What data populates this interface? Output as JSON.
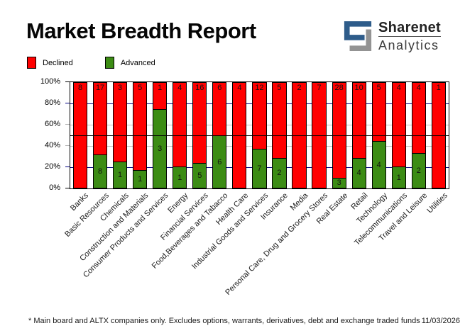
{
  "header": {
    "title": "Market Breadth Report"
  },
  "logo": {
    "brand": "Sharenet",
    "sub": "Analytics",
    "blue": "#2e5c8a",
    "gray": "#939393"
  },
  "legend": {
    "items": [
      {
        "label": "Declined",
        "color": "#ff0000"
      },
      {
        "label": "Advanced",
        "color": "#3c8c14"
      }
    ]
  },
  "chart_data": {
    "type": "bar",
    "stacked": true,
    "normalized": "percent",
    "title": "Market Breadth Report",
    "legend_position": "top-left",
    "categories": [
      "Banks",
      "Basic Resources",
      "Chemicals",
      "Construction and Materials",
      "Consumer Products and Services",
      "Energy",
      "Financial Services",
      "Food,Beverages and Tabacco",
      "Health Care",
      "Industrial Goods and Services",
      "Insurance",
      "Media",
      "Personal Care, Drug and Grocery Stores",
      "Real Estate",
      "Retail",
      "Technology",
      "Telecommunications",
      "Travel and Leisure",
      "Utilities"
    ],
    "series": [
      {
        "name": "Declined",
        "color": "#ff0000",
        "values": [
          8,
          17,
          3,
          5,
          1,
          4,
          16,
          6,
          4,
          12,
          5,
          2,
          7,
          28,
          10,
          5,
          4,
          4,
          1
        ]
      },
      {
        "name": "Advanced",
        "color": "#3c8c14",
        "values": [
          0,
          8,
          1,
          1,
          3,
          1,
          5,
          6,
          0,
          7,
          2,
          0,
          0,
          3,
          4,
          4,
          1,
          2,
          0
        ]
      }
    ],
    "y_axis": {
      "range": [
        0,
        100
      ],
      "ticks": [
        {
          "label": "0%",
          "percent": 0,
          "tick_color": "#000000"
        },
        {
          "label": "20%",
          "percent": 20,
          "tick_color": "#000080"
        },
        {
          "label": "40%",
          "percent": 40,
          "tick_color": "#b0b0b0"
        },
        {
          "label": "60%",
          "percent": 60,
          "tick_color": "#b0b0b0"
        },
        {
          "label": "80%",
          "percent": 80,
          "tick_color": "#000080"
        },
        {
          "label": "100%",
          "percent": 100,
          "tick_color": "#000000"
        }
      ]
    },
    "gridlines": [
      {
        "percent": 20,
        "color": "#000080",
        "layer": "under"
      },
      {
        "percent": 40,
        "color": "#c0c0c0",
        "layer": "under"
      },
      {
        "percent": 60,
        "color": "#c0c0c0",
        "layer": "under"
      },
      {
        "percent": 80,
        "color": "#000080",
        "layer": "under"
      },
      {
        "percent": 50,
        "color": "#000000",
        "layer": "over"
      }
    ]
  },
  "footer": {
    "note": "* Main board and ALTX companies only. Excludes options, warrants, derivatives, debt and exchange traded funds",
    "date": "11/03/2026"
  }
}
